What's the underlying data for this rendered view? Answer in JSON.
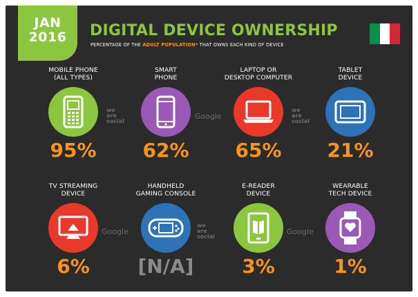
{
  "badge": {
    "month": "JAN",
    "year": "2016"
  },
  "title": "DIGITAL DEVICE OWNERSHIP",
  "subtitle": {
    "before": "PERCENTAGE OF THE ",
    "highlight": "ADULT POPULATION*",
    "after": " THAT OWNS EACH KIND OF DEVICE"
  },
  "flag": {
    "colors": [
      "#009246",
      "#ffffff",
      "#ce2b37"
    ]
  },
  "watermarks": {
    "google": "Google",
    "we_are_social": [
      "we",
      "are",
      "social"
    ]
  },
  "colors": {
    "green": "#8cc63f",
    "purple": "#9b59b6",
    "red": "#e8392b",
    "blue": "#2e73b8",
    "orange": "#f7941d"
  },
  "devices": [
    {
      "label_line1": "MOBILE PHONE",
      "label_line2": "(ALL TYPES)",
      "value": "95%",
      "icon": "mobile-phone-icon",
      "color": "#8cc63f"
    },
    {
      "label_line1": "SMART",
      "label_line2": "PHONE",
      "value": "62%",
      "icon": "smartphone-icon",
      "color": "#9b59b6"
    },
    {
      "label_line1": "LAPTOP OR",
      "label_line2": "DESKTOP COMPUTER",
      "value": "65%",
      "icon": "laptop-icon",
      "color": "#e8392b"
    },
    {
      "label_line1": "TABLET",
      "label_line2": "DEVICE",
      "value": "21%",
      "icon": "tablet-icon",
      "color": "#2e73b8"
    },
    {
      "label_line1": "TV STREAMING",
      "label_line2": "DEVICE",
      "value": "6%",
      "icon": "tv-streaming-icon",
      "color": "#e8392b"
    },
    {
      "label_line1": "HANDHELD",
      "label_line2": "GAMING CONSOLE",
      "value": "[N/A]",
      "icon": "gaming-console-icon",
      "color": "#2e73b8"
    },
    {
      "label_line1": "E-READER",
      "label_line2": "DEVICE",
      "value": "3%",
      "icon": "ereader-icon",
      "color": "#8cc63f"
    },
    {
      "label_line1": "WEARABLE",
      "label_line2": "TECH DEVICE",
      "value": "1%",
      "icon": "wearable-icon",
      "color": "#9b59b6"
    }
  ]
}
